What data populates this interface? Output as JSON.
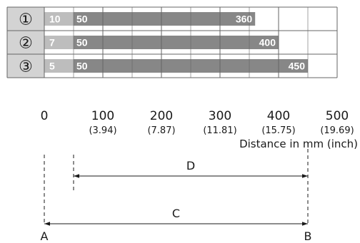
{
  "chart_data": {
    "type": "bar",
    "xlabel": "Distance in mm (inch)",
    "xlim": [
      0,
      500
    ],
    "ticks": [
      {
        "mm": "0",
        "inch": ""
      },
      {
        "mm": "100",
        "inch": "(3.94)"
      },
      {
        "mm": "200",
        "inch": "(7.87)"
      },
      {
        "mm": "300",
        "inch": "(11.81)"
      },
      {
        "mm": "400",
        "inch": "(15.75)"
      },
      {
        "mm": "500",
        "inch": "(19.69)"
      }
    ],
    "rows": [
      {
        "id": "①",
        "min_range": 10,
        "min_label": "10",
        "start": 50,
        "start_label": "50",
        "end": 360,
        "end_label": "360"
      },
      {
        "id": "②",
        "min_range": 7,
        "min_label": "7",
        "start": 50,
        "start_label": "50",
        "end": 400,
        "end_label": "400"
      },
      {
        "id": "③",
        "min_range": 5,
        "min_label": "5",
        "start": 50,
        "start_label": "50",
        "end": 450,
        "end_label": "450"
      }
    ],
    "dimensions": [
      {
        "label": "D",
        "from": 50,
        "to": 450
      },
      {
        "label": "C",
        "from": 0,
        "to": 450
      }
    ],
    "points": [
      {
        "label": "A",
        "at": 0
      },
      {
        "label": "B",
        "at": 450
      }
    ],
    "colors": {
      "light_bar": "#bdbdbd",
      "dark_bar": "#878787",
      "label_box": "#d3d3d3",
      "grid": "#666666",
      "text": "#1a1a1a"
    }
  }
}
